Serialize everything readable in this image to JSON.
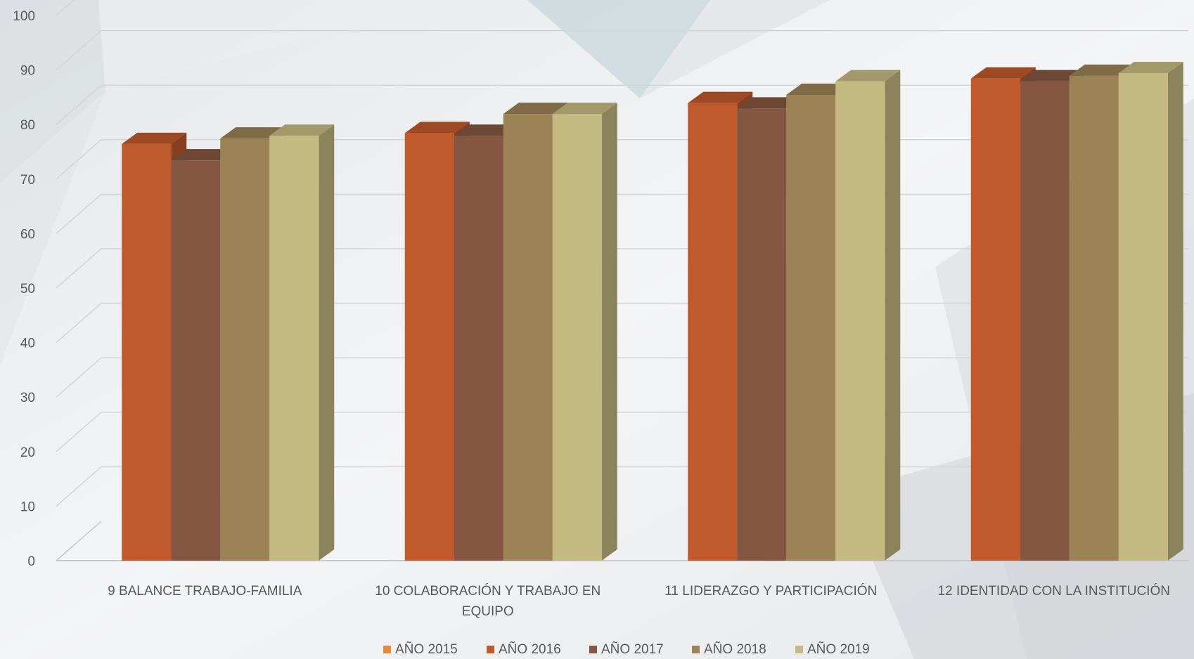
{
  "chart_data": {
    "type": "bar",
    "categories": [
      [
        "9 BALANCE TRABAJO-FAMILIA"
      ],
      [
        "10 COLABORACIÓN Y TRABAJO EN",
        "EQUIPO"
      ],
      [
        "11 LIDERAZGO Y PARTICIPACIÓN"
      ],
      [
        "12 IDENTIDAD CON LA INSTITUCIÓN"
      ]
    ],
    "series": [
      {
        "name": "AÑO 2015",
        "color": "#e8883a",
        "values": [
          null,
          null,
          null,
          null
        ]
      },
      {
        "name": "AÑO 2016",
        "color": "#c05a2c",
        "values": [
          78.5,
          80.5,
          86,
          90.5
        ]
      },
      {
        "name": "AÑO 2017",
        "color": "#855742",
        "values": [
          75.5,
          80,
          85,
          90
        ]
      },
      {
        "name": "AÑO 2018",
        "color": "#9b8356",
        "values": [
          79.5,
          84,
          87.5,
          91
        ]
      },
      {
        "name": "AÑO 2019",
        "color": "#c5bb82",
        "values": [
          80,
          84,
          90,
          91.5
        ]
      }
    ],
    "ylim": [
      0,
      100
    ],
    "yticks": [
      0,
      10,
      20,
      30,
      40,
      50,
      60,
      70,
      80,
      90,
      100
    ],
    "grid": true,
    "legend_position": "bottom"
  }
}
